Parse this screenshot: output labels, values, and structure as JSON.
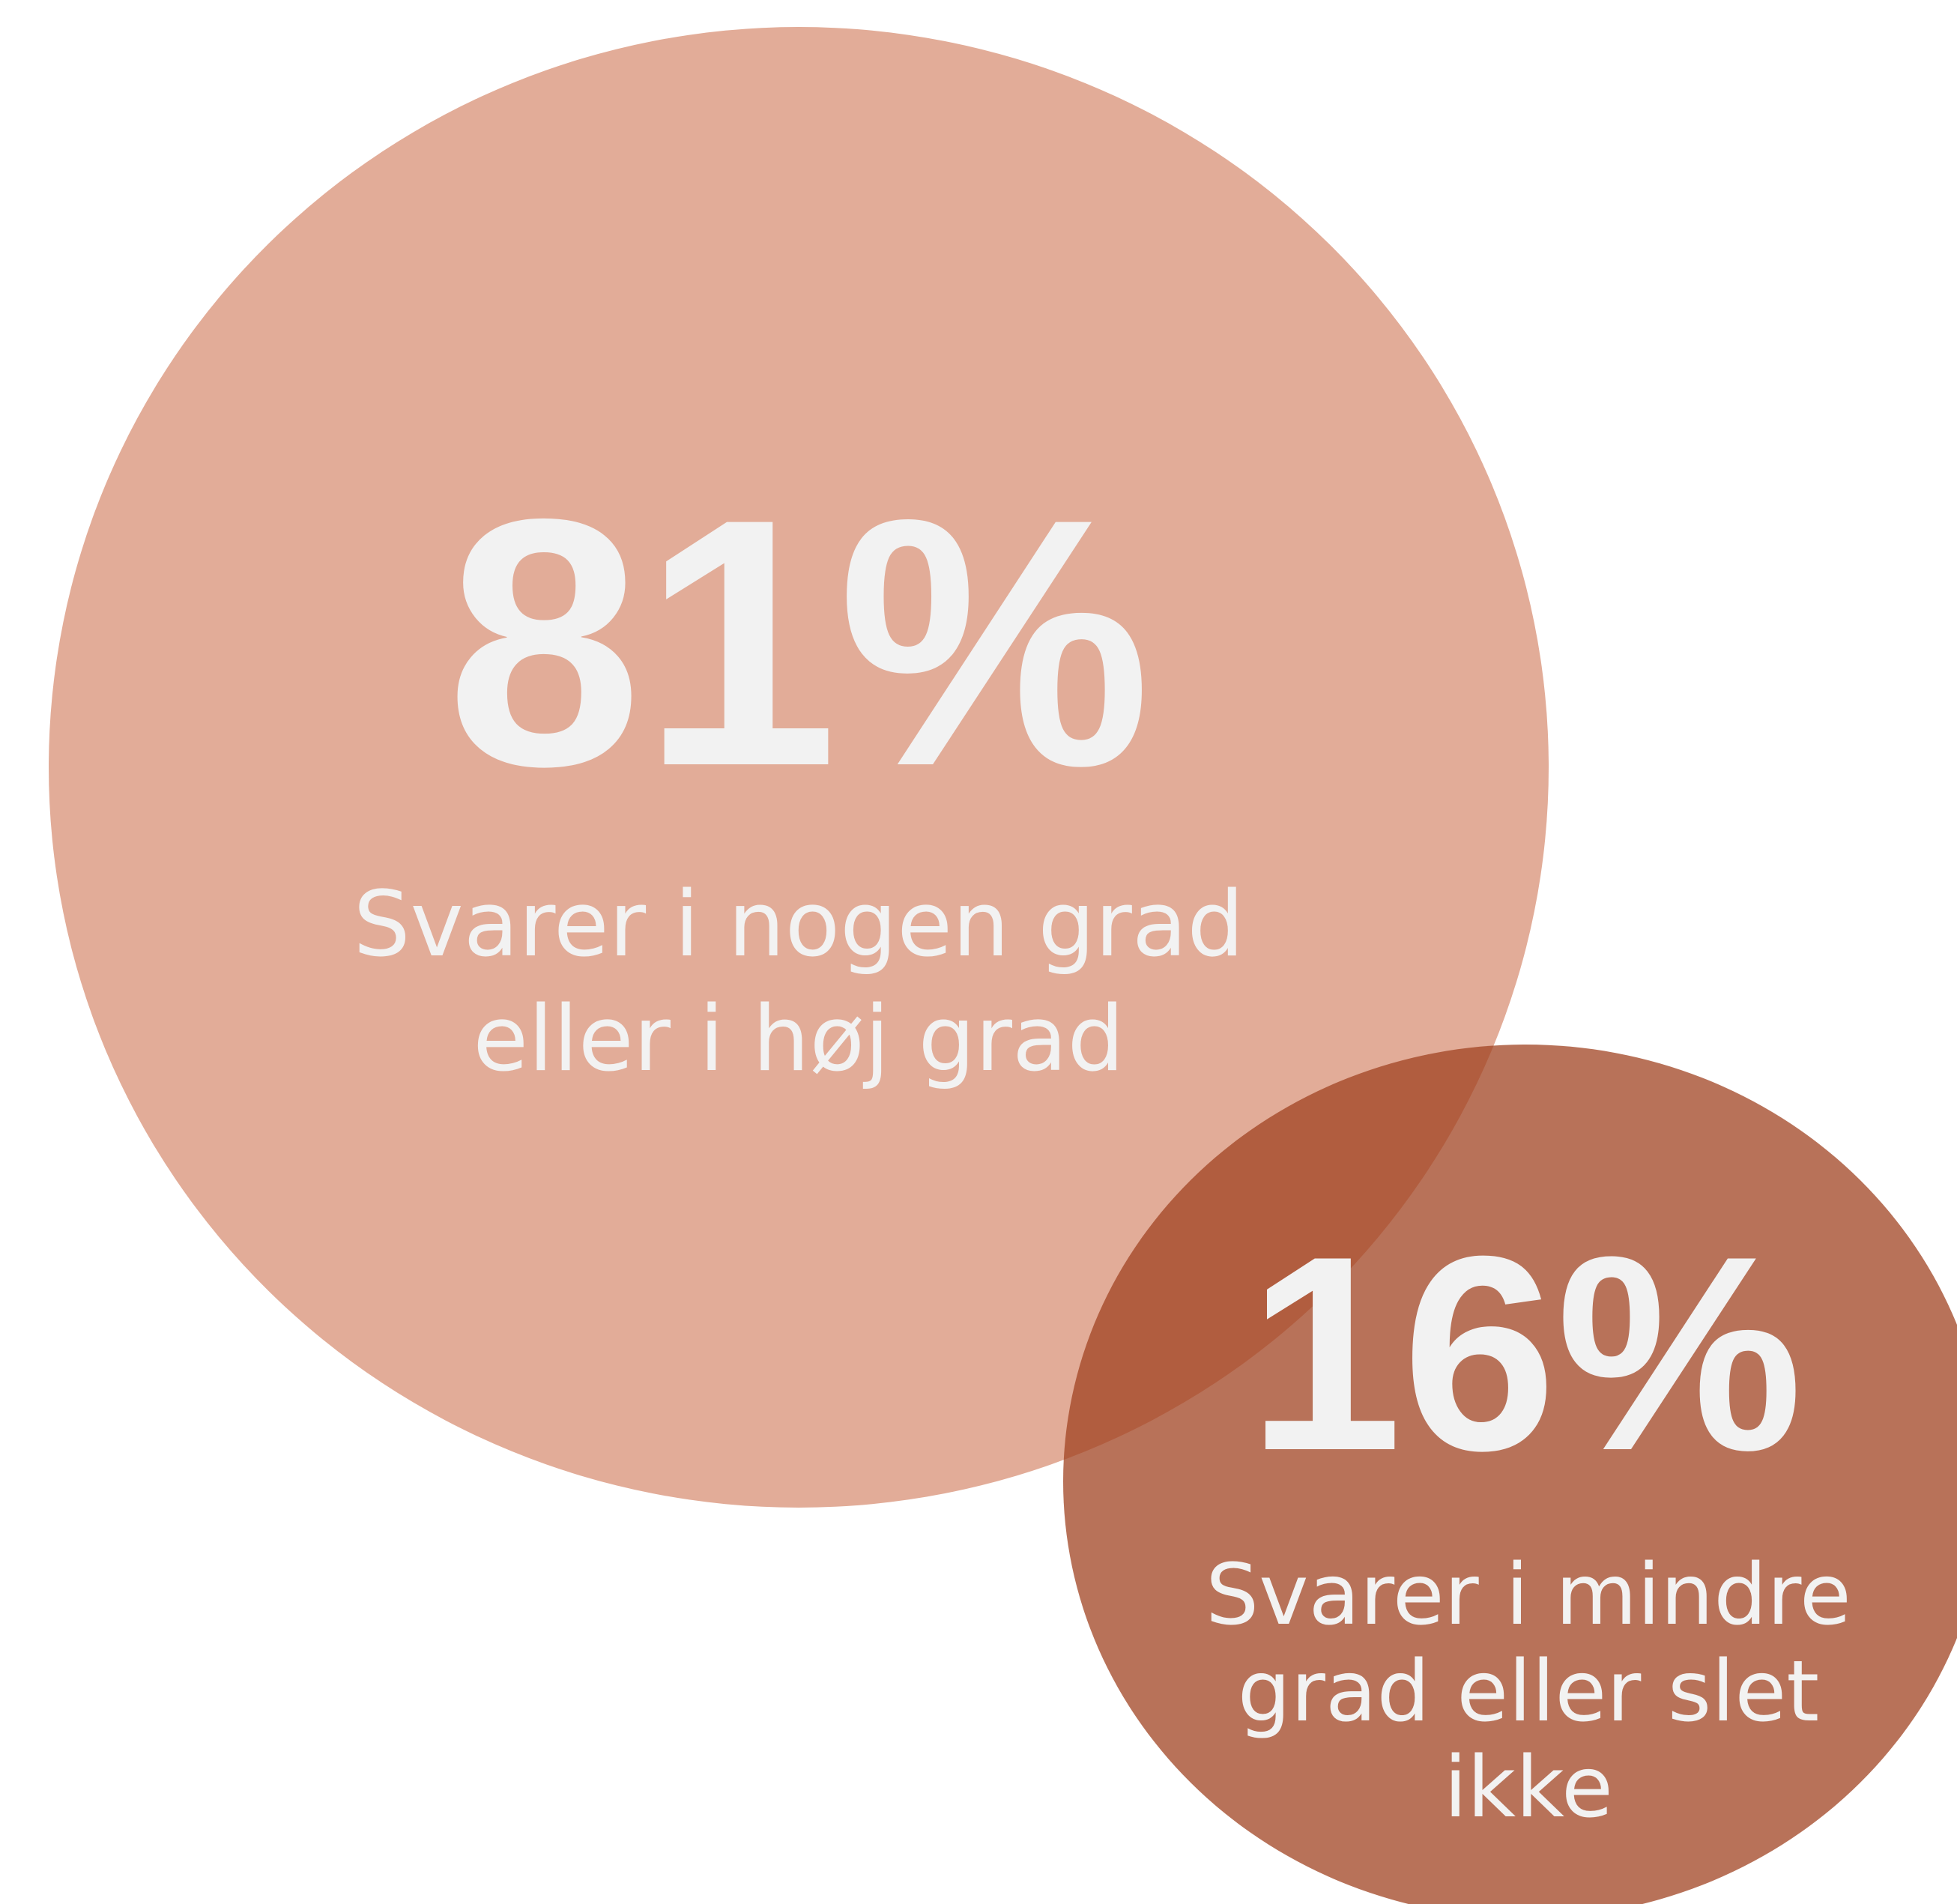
{
  "items": [
    {
      "value": "81%",
      "lines": [
        "Svarer i nogen grad",
        "eller i høj grad"
      ]
    },
    {
      "value": "16%",
      "lines": [
        "Svarer i mindre",
        "grad eller slet",
        "ikke"
      ]
    }
  ]
}
